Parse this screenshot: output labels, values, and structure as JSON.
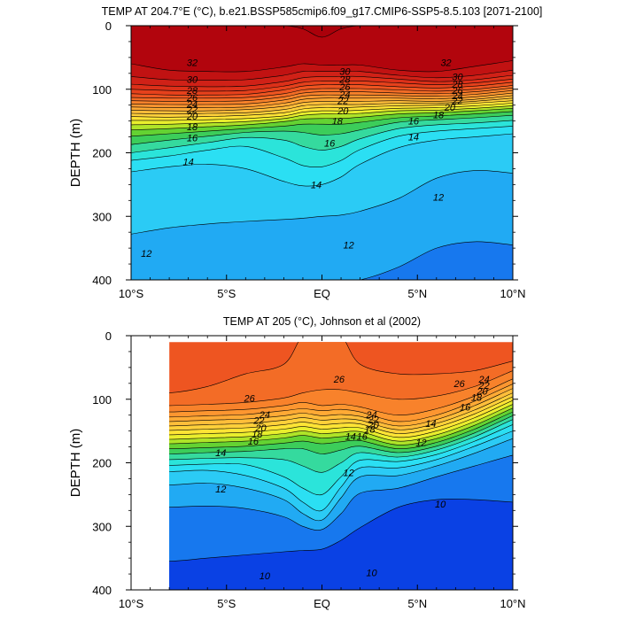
{
  "chart_data": [
    {
      "type": "contour",
      "title": "TEMP AT 204.7°E (°C), b.e21.BSSP585cmip6.f09_g17.CMIP6-SSP5-8.5.103 [2071-2100]",
      "xlabel": "",
      "ylabel": "DEPTH (m)",
      "xlim": [
        -10,
        10
      ],
      "ylim": [
        400,
        0
      ],
      "xticks": [
        -10,
        -5,
        0,
        5,
        10
      ],
      "xtick_labels": [
        "10°S",
        "5°S",
        "EQ",
        "5°N",
        "10°N"
      ],
      "yticks": [
        0,
        100,
        200,
        300,
        400
      ],
      "ytick_labels": [
        "0",
        "100",
        "200",
        "300",
        "400"
      ],
      "contour_levels": [
        11,
        12,
        13,
        14,
        15,
        16,
        17,
        18,
        19,
        20,
        21,
        22,
        23,
        24,
        25,
        26,
        27,
        28,
        29,
        30,
        31,
        32,
        33
      ],
      "data_extent_x": [
        -10,
        10
      ],
      "depth_of_isotherm_m": {
        "x": [
          -10,
          -8,
          -6,
          -4,
          -2,
          -1,
          0,
          1,
          2,
          4,
          6,
          8,
          10
        ],
        "33": [
          0,
          0,
          0,
          0,
          0,
          5,
          18,
          5,
          0,
          0,
          0,
          0,
          0
        ],
        "32": [
          60,
          70,
          72,
          72,
          65,
          60,
          62,
          62,
          62,
          70,
          72,
          64,
          55
        ],
        "31": [
          80,
          85,
          86,
          85,
          78,
          72,
          72,
          72,
          72,
          78,
          82,
          78,
          70
        ],
        "30": [
          92,
          95,
          96,
          95,
          88,
          82,
          80,
          80,
          80,
          84,
          88,
          85,
          78
        ],
        "29": [
          100,
          102,
          103,
          102,
          95,
          89,
          87,
          87,
          87,
          90,
          93,
          90,
          84
        ],
        "28": [
          107,
          109,
          109,
          108,
          101,
          95,
          93,
          93,
          93,
          96,
          98,
          95,
          89
        ],
        "27": [
          113,
          114,
          114,
          113,
          107,
          101,
          99,
          99,
          99,
          101,
          103,
          100,
          94
        ],
        "26": [
          118,
          119,
          119,
          118,
          112,
          106,
          104,
          104,
          104,
          106,
          107,
          104,
          98
        ],
        "25": [
          123,
          124,
          124,
          123,
          117,
          111,
          109,
          109,
          109,
          110,
          111,
          108,
          102
        ],
        "24": [
          128,
          129,
          129,
          128,
          122,
          116,
          114,
          114,
          114,
          114,
          115,
          112,
          106
        ],
        "23": [
          133,
          134,
          134,
          132,
          127,
          121,
          119,
          119,
          119,
          118,
          119,
          116,
          110
        ],
        "22": [
          138,
          139,
          138,
          137,
          132,
          126,
          124,
          124,
          124,
          122,
          122,
          119,
          114
        ],
        "21": [
          143,
          144,
          143,
          141,
          137,
          131,
          129,
          129,
          128,
          126,
          125,
          122,
          118
        ],
        "20": [
          149,
          149,
          148,
          146,
          142,
          136,
          134,
          134,
          133,
          130,
          129,
          126,
          122
        ],
        "19": [
          156,
          155,
          153,
          151,
          146,
          141,
          139,
          139,
          138,
          134,
          133,
          130,
          126
        ],
        "18": [
          164,
          162,
          159,
          156,
          151,
          147,
          146,
          146,
          144,
          139,
          137,
          134,
          130
        ],
        "17": [
          174,
          170,
          166,
          162,
          158,
          155,
          155,
          155,
          152,
          145,
          142,
          139,
          135
        ],
        "16": [
          187,
          180,
          174,
          168,
          166,
          168,
          172,
          170,
          164,
          152,
          148,
          145,
          141
        ],
        "15": [
          200,
          192,
          184,
          176,
          180,
          190,
          196,
          190,
          178,
          162,
          156,
          153,
          149
        ],
        "14": [
          212,
          205,
          196,
          190,
          208,
          220,
          222,
          212,
          195,
          174,
          166,
          162,
          158
        ],
        "13": [
          230,
          222,
          218,
          225,
          245,
          252,
          250,
          238,
          218,
          192,
          180,
          175,
          170
        ],
        "12": [
          328,
          318,
          312,
          308,
          305,
          303,
          300,
          298,
          292,
          272,
          240,
          228,
          232
        ],
        "11": [
          400,
          400,
          400,
          400,
          400,
          400,
          400,
          400,
          400,
          380,
          350,
          340,
          345
        ]
      },
      "labels": [
        {
          "text": "32",
          "x": -6.8,
          "d": 58
        },
        {
          "text": "30",
          "x": -6.8,
          "d": 84
        },
        {
          "text": "28",
          "x": -6.8,
          "d": 102
        },
        {
          "text": "26",
          "x": -6.8,
          "d": 113
        },
        {
          "text": "24",
          "x": -6.8,
          "d": 123
        },
        {
          "text": "22",
          "x": -6.8,
          "d": 132
        },
        {
          "text": "20",
          "x": -6.8,
          "d": 142
        },
        {
          "text": "18",
          "x": -6.8,
          "d": 159
        },
        {
          "text": "16",
          "x": -6.8,
          "d": 176
        },
        {
          "text": "14",
          "x": -7.0,
          "d": 214
        },
        {
          "text": "30",
          "x": 1.2,
          "d": 72
        },
        {
          "text": "28",
          "x": 1.2,
          "d": 84
        },
        {
          "text": "26",
          "x": 1.2,
          "d": 96
        },
        {
          "text": "24",
          "x": 1.2,
          "d": 108
        },
        {
          "text": "22",
          "x": 1.1,
          "d": 118
        },
        {
          "text": "20",
          "x": 1.1,
          "d": 134
        },
        {
          "text": "18",
          "x": 0.8,
          "d": 150
        },
        {
          "text": "16",
          "x": 0.4,
          "d": 185
        },
        {
          "text": "14",
          "x": -0.3,
          "d": 250
        },
        {
          "text": "32",
          "x": 6.5,
          "d": 58
        },
        {
          "text": "30",
          "x": 7.1,
          "d": 80
        },
        {
          "text": "28",
          "x": 7.1,
          "d": 92
        },
        {
          "text": "26",
          "x": 7.1,
          "d": 102
        },
        {
          "text": "24",
          "x": 7.1,
          "d": 110
        },
        {
          "text": "22",
          "x": 7.1,
          "d": 118
        },
        {
          "text": "20",
          "x": 6.7,
          "d": 128
        },
        {
          "text": "18",
          "x": 6.1,
          "d": 140
        },
        {
          "text": "16",
          "x": 4.8,
          "d": 150
        },
        {
          "text": "14",
          "x": 4.8,
          "d": 175
        },
        {
          "text": "12",
          "x": 6.1,
          "d": 270
        },
        {
          "text": "12",
          "x": 1.4,
          "d": 345
        },
        {
          "text": "12",
          "x": -9.2,
          "d": 358
        }
      ],
      "labels_note": "contour annotations",
      "label_positions_note": "x in degrees latitude, d in metres"
    },
    {
      "type": "contour",
      "title": "TEMP AT 205 (°C), Johnson et al (2002)",
      "xlabel": "",
      "ylabel": "DEPTH (m)",
      "xlim": [
        -10,
        10
      ],
      "ylim": [
        400,
        0
      ],
      "xticks": [
        -10,
        -5,
        0,
        5,
        10
      ],
      "xtick_labels": [
        "10°S",
        "5°S",
        "EQ",
        "5°N",
        "10°N"
      ],
      "yticks": [
        0,
        100,
        200,
        300,
        400
      ],
      "ytick_labels": [
        "0",
        "100",
        "200",
        "300",
        "400"
      ],
      "contour_levels": [
        9,
        10,
        11,
        12,
        13,
        14,
        15,
        16,
        17,
        18,
        19,
        20,
        21,
        22,
        23,
        24,
        25,
        26,
        27
      ],
      "data_extent_x": [
        -8,
        10
      ],
      "data_extent_depth": [
        10,
        400
      ],
      "depth_of_isotherm_m": {
        "x": [
          -8,
          -6,
          -4,
          -2,
          -1,
          0,
          1,
          2,
          4,
          6,
          8,
          10
        ],
        "27": [
          90,
          80,
          60,
          45,
          0,
          0,
          0,
          45,
          60,
          60,
          55,
          40
        ],
        "26": [
          110,
          108,
          105,
          98,
          90,
          85,
          85,
          90,
          100,
          95,
          80,
          55
        ],
        "25": [
          120,
          118,
          116,
          110,
          105,
          110,
          108,
          112,
          125,
          115,
          95,
          68
        ],
        "24": [
          128,
          126,
          124,
          118,
          115,
          118,
          116,
          120,
          135,
          125,
          103,
          76
        ],
        "23": [
          135,
          133,
          131,
          126,
          122,
          126,
          124,
          127,
          142,
          132,
          110,
          83
        ],
        "22": [
          142,
          140,
          138,
          133,
          129,
          133,
          131,
          133,
          148,
          138,
          117,
          90
        ],
        "21": [
          149,
          147,
          145,
          140,
          136,
          140,
          138,
          139,
          154,
          144,
          123,
          96
        ],
        "20": [
          156,
          154,
          152,
          147,
          143,
          147,
          145,
          145,
          160,
          150,
          129,
          102
        ],
        "19": [
          163,
          161,
          159,
          154,
          150,
          154,
          152,
          151,
          166,
          156,
          135,
          108
        ],
        "18": [
          170,
          168,
          166,
          161,
          157,
          161,
          159,
          158,
          172,
          162,
          141,
          114
        ],
        "17": [
          178,
          176,
          174,
          169,
          166,
          170,
          167,
          165,
          178,
          168,
          147,
          120
        ],
        "16": [
          186,
          184,
          182,
          178,
          178,
          186,
          180,
          174,
          184,
          174,
          153,
          126
        ],
        "15": [
          195,
          193,
          192,
          195,
          205,
          215,
          200,
          184,
          191,
          180,
          159,
          132
        ],
        "14": [
          204,
          202,
          203,
          222,
          240,
          250,
          222,
          196,
          198,
          187,
          166,
          140
        ],
        "13": [
          214,
          212,
          220,
          240,
          262,
          275,
          238,
          208,
          208,
          195,
          174,
          150
        ],
        "12": [
          235,
          232,
          240,
          258,
          280,
          290,
          255,
          222,
          220,
          205,
          185,
          162
        ],
        "11": [
          270,
          268,
          272,
          285,
          300,
          305,
          280,
          248,
          240,
          222,
          205,
          188
        ],
        "10": [
          355,
          350,
          345,
          340,
          338,
          336,
          322,
          302,
          270,
          258,
          258,
          262
        ],
        "9": [
          400,
          400,
          400,
          400,
          400,
          400,
          400,
          400,
          400,
          400,
          400,
          400
        ]
      },
      "labels": [
        {
          "text": "26",
          "x": -3.8,
          "d": 98
        },
        {
          "text": "24",
          "x": -3.0,
          "d": 124
        },
        {
          "text": "22",
          "x": -3.3,
          "d": 133
        },
        {
          "text": "20",
          "x": -3.2,
          "d": 145
        },
        {
          "text": "18",
          "x": -3.4,
          "d": 155
        },
        {
          "text": "16",
          "x": -3.6,
          "d": 166
        },
        {
          "text": "14",
          "x": -5.3,
          "d": 184
        },
        {
          "text": "12",
          "x": -5.3,
          "d": 241
        },
        {
          "text": "26",
          "x": 0.9,
          "d": 68
        },
        {
          "text": "24",
          "x": 2.6,
          "d": 124
        },
        {
          "text": "22",
          "x": 2.7,
          "d": 132
        },
        {
          "text": "20",
          "x": 2.7,
          "d": 140
        },
        {
          "text": "18",
          "x": 2.5,
          "d": 147
        },
        {
          "text": "16",
          "x": 2.1,
          "d": 158
        },
        {
          "text": "14",
          "x": 1.5,
          "d": 158
        },
        {
          "text": "12",
          "x": 1.4,
          "d": 215
        },
        {
          "text": "26",
          "x": 7.2,
          "d": 75
        },
        {
          "text": "24",
          "x": 8.5,
          "d": 68
        },
        {
          "text": "22",
          "x": 8.5,
          "d": 78
        },
        {
          "text": "20",
          "x": 8.4,
          "d": 87
        },
        {
          "text": "18",
          "x": 8.1,
          "d": 97
        },
        {
          "text": "16",
          "x": 7.5,
          "d": 112
        },
        {
          "text": "14",
          "x": 5.7,
          "d": 138
        },
        {
          "text": "12",
          "x": 5.2,
          "d": 168
        },
        {
          "text": "10",
          "x": 6.2,
          "d": 265
        },
        {
          "text": "10",
          "x": 2.6,
          "d": 373
        },
        {
          "text": "10",
          "x": -3.0,
          "d": 378
        }
      ],
      "labels_note": "contour annotations",
      "label_positions_note": "x in degrees latitude, d in metres"
    }
  ]
}
